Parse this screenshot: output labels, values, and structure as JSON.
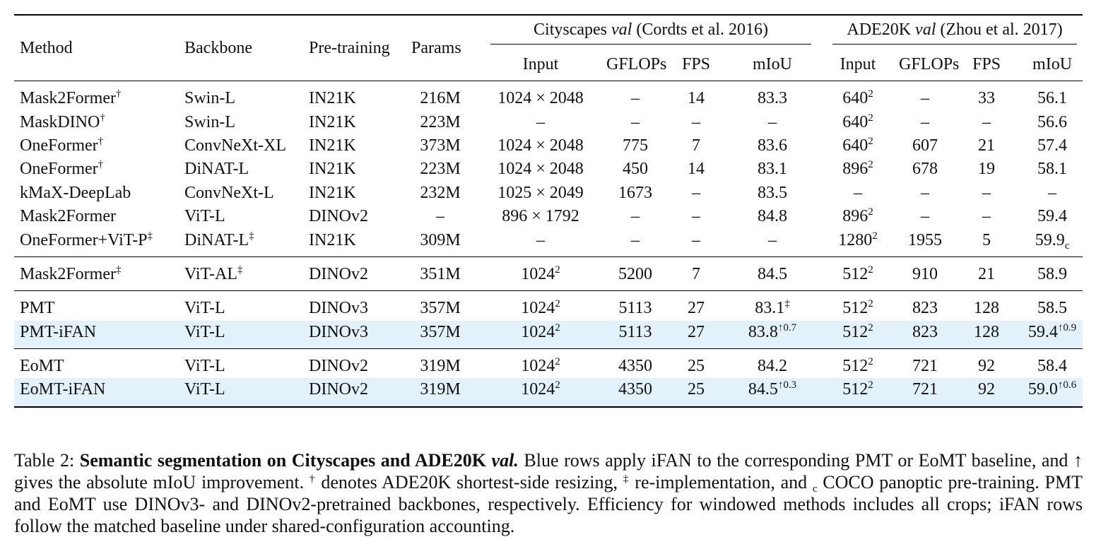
{
  "table": {
    "columns": [
      "Method",
      "Backbone",
      "Pre-training",
      "Params"
    ],
    "groups": [
      {
        "name": "Cityscapes",
        "italic": "val",
        "cite": "(Cordts et al. 2016)",
        "subcolumns": [
          "Input",
          "GFLOPs",
          "FPS",
          "mIoU"
        ]
      },
      {
        "name": "ADE20K",
        "italic": "val",
        "cite": "(Zhou et al. 2017)",
        "subcolumns": [
          "Input",
          "GFLOPs",
          "FPS",
          "mIoU"
        ]
      }
    ],
    "sections": [
      {
        "rows": [
          {
            "cells": [
              {
                "text": "Mask2Former",
                "sup": "†"
              },
              "Swin-L",
              "IN21K",
              "216M",
              "1024 × 2048",
              "–",
              "14",
              "83.3",
              {
                "text": "640",
                "sup": "2"
              },
              "–",
              "33",
              "56.1"
            ]
          },
          {
            "cells": [
              {
                "text": "MaskDINO",
                "sup": "†"
              },
              "Swin-L",
              "IN21K",
              "223M",
              "–",
              "–",
              "–",
              "–",
              {
                "text": "640",
                "sup": "2"
              },
              "–",
              "–",
              "56.6"
            ]
          },
          {
            "cells": [
              {
                "text": "OneFormer",
                "sup": "†"
              },
              "ConvNeXt-XL",
              "IN21K",
              "373M",
              "1024 × 2048",
              "775",
              "7",
              "83.6",
              {
                "text": "640",
                "sup": "2"
              },
              "607",
              "21",
              "57.4"
            ]
          },
          {
            "cells": [
              {
                "text": "OneFormer",
                "sup": "†"
              },
              "DiNAT-L",
              "IN21K",
              "223M",
              "1024 × 2048",
              "450",
              "14",
              "83.1",
              {
                "text": "896",
                "sup": "2"
              },
              "678",
              "19",
              "58.1"
            ]
          },
          {
            "cells": [
              "kMaX-DeepLab",
              "ConvNeXt-L",
              "IN21K",
              "232M",
              "1025 × 2049",
              "1673",
              "–",
              "83.5",
              "–",
              "–",
              "–",
              "–"
            ]
          },
          {
            "cells": [
              "Mask2Former",
              "ViT-L",
              "DINOv2",
              "–",
              "896 × 1792",
              "–",
              "–",
              "84.8",
              {
                "text": "896",
                "sup": "2"
              },
              "–",
              "–",
              "59.4"
            ]
          },
          {
            "cells": [
              {
                "text": "OneFormer+ViT-P",
                "sup": "‡"
              },
              {
                "text": "DiNAT-L",
                "sup": "‡"
              },
              "IN21K",
              "309M",
              "–",
              "–",
              "–",
              "–",
              {
                "text": "1280",
                "sup": "2"
              },
              "1955",
              "5",
              {
                "text": "59.9",
                "sub": "c"
              }
            ]
          }
        ]
      },
      {
        "rows": [
          {
            "cells": [
              {
                "text": "Mask2Former",
                "sup": "‡"
              },
              {
                "text": "ViT-AL",
                "sup": "‡"
              },
              "DINOv2",
              "351M",
              {
                "text": "1024",
                "sup": "2"
              },
              "5200",
              "7",
              "84.5",
              {
                "text": "512",
                "sup": "2"
              },
              "910",
              "21",
              "58.9"
            ]
          }
        ]
      },
      {
        "rows": [
          {
            "cells": [
              "PMT",
              "ViT-L",
              "DINOv3",
              "357M",
              {
                "text": "1024",
                "sup": "2"
              },
              "5113",
              "27",
              {
                "text": "83.1",
                "sup": "‡"
              },
              {
                "text": "512",
                "sup": "2"
              },
              "823",
              "128",
              "58.5"
            ]
          },
          {
            "highlight": true,
            "cells": [
              "PMT-iFAN",
              "ViT-L",
              "DINOv3",
              "357M",
              {
                "text": "1024",
                "sup": "2"
              },
              "5113",
              "27",
              {
                "text": "83.8",
                "sup": "↑0.7"
              },
              {
                "text": "512",
                "sup": "2"
              },
              "823",
              "128",
              {
                "text": "59.4",
                "sup": "↑0.9"
              }
            ]
          }
        ]
      },
      {
        "rows": [
          {
            "cells": [
              "EoMT",
              "ViT-L",
              "DINOv2",
              "319M",
              {
                "text": "1024",
                "sup": "2"
              },
              "4350",
              "25",
              "84.2",
              {
                "text": "512",
                "sup": "2"
              },
              "721",
              "92",
              "58.4"
            ]
          },
          {
            "highlight": true,
            "cells": [
              "EoMT-iFAN",
              "ViT-L",
              "DINOv2",
              "319M",
              {
                "text": "1024",
                "sup": "2"
              },
              "4350",
              "25",
              {
                "text": "84.5",
                "sup": "↑0.3"
              },
              {
                "text": "512",
                "sup": "2"
              },
              "721",
              "92",
              {
                "text": "59.0",
                "sup": "↑0.6"
              }
            ]
          }
        ]
      }
    ]
  },
  "caption": [
    {
      "text": "Table 2: ",
      "style": "plain"
    },
    {
      "text": "Semantic segmentation on Cityscapes and ADE20K ",
      "style": "bold"
    },
    {
      "text": "val.",
      "style": "bold-italic"
    },
    {
      "text": " Blue rows apply iFAN to the corresponding PMT or EoMT baseline, and ↑ gives the absolute mIoU improvement. ",
      "style": "plain"
    },
    {
      "text": "†",
      "style": "sup"
    },
    {
      "text": " denotes ADE20K shortest-side resizing, ",
      "style": "plain"
    },
    {
      "text": "‡",
      "style": "sup"
    },
    {
      "text": " re-implementation, and ",
      "style": "plain"
    },
    {
      "text": "c",
      "style": "sub"
    },
    {
      "text": " COCO panoptic pre-training. PMT and EoMT use DINOv3- and DINOv2-pretrained backbones, respectively. Efficiency for windowed methods includes all crops; iFAN rows follow the matched baseline under shared-configuration accounting.",
      "style": "plain"
    }
  ]
}
